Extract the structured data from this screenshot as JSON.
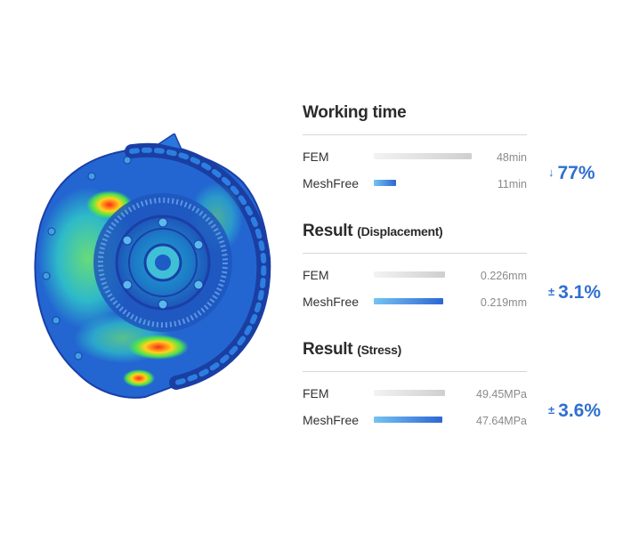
{
  "chart_data": {
    "type": "bar",
    "orientation": "horizontal",
    "colors": {
      "FEM": "#cfcfcf",
      "MeshFree": "#2d66d4",
      "accent": "#2f6fd0"
    },
    "sections": [
      {
        "title": "Working time",
        "subtitle": "",
        "unit": "min",
        "rows": [
          {
            "name": "FEM",
            "value": 48,
            "label": "48min"
          },
          {
            "name": "MeshFree",
            "value": 11,
            "label": "11min"
          }
        ],
        "improvement": {
          "symbol": "↓",
          "text": "77%"
        }
      },
      {
        "title": "Result",
        "subtitle": "(Displacement)",
        "unit": "mm",
        "rows": [
          {
            "name": "FEM",
            "value": 0.226,
            "label": "0.226mm"
          },
          {
            "name": "MeshFree",
            "value": 0.219,
            "label": "0.219mm"
          }
        ],
        "improvement": {
          "symbol": "±",
          "text": "3.1%"
        }
      },
      {
        "title": "Result",
        "subtitle": "(Stress)",
        "unit": "MPa",
        "rows": [
          {
            "name": "FEM",
            "value": 49.45,
            "label": "49.45MPa"
          },
          {
            "name": "MeshFree",
            "value": 47.64,
            "label": "47.64MPa"
          }
        ],
        "improvement": {
          "symbol": "±",
          "text": "3.6%"
        }
      }
    ]
  }
}
